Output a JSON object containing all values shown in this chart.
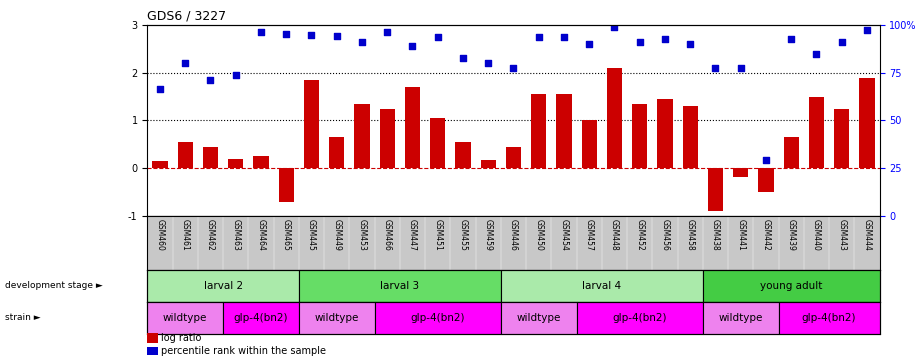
{
  "title": "GDS6 / 3227",
  "samples": [
    "GSM460",
    "GSM461",
    "GSM462",
    "GSM463",
    "GSM464",
    "GSM465",
    "GSM445",
    "GSM449",
    "GSM453",
    "GSM466",
    "GSM447",
    "GSM451",
    "GSM455",
    "GSM459",
    "GSM446",
    "GSM450",
    "GSM454",
    "GSM457",
    "GSM448",
    "GSM452",
    "GSM456",
    "GSM458",
    "GSM438",
    "GSM441",
    "GSM442",
    "GSM439",
    "GSM440",
    "GSM443",
    "GSM444"
  ],
  "log_ratio": [
    0.15,
    0.55,
    0.45,
    0.2,
    0.25,
    -0.7,
    1.85,
    0.65,
    1.35,
    1.25,
    1.7,
    1.05,
    0.55,
    0.18,
    0.45,
    1.55,
    1.55,
    1.0,
    2.1,
    1.35,
    1.45,
    1.3,
    -0.9,
    -0.18,
    -0.5,
    0.65,
    1.5,
    1.25,
    1.9
  ],
  "percentile_left": [
    1.65,
    2.2,
    1.85,
    1.95,
    2.85,
    2.82,
    2.78,
    2.76,
    2.65,
    2.85,
    2.55,
    2.75,
    2.3,
    2.2,
    2.1,
    2.75,
    2.75,
    2.6,
    2.95,
    2.65,
    2.7,
    2.6,
    2.1,
    2.1,
    0.18,
    2.7,
    2.4,
    2.65,
    2.9
  ],
  "dev_stage_groups": [
    {
      "label": "larval 2",
      "start": 0,
      "end": 6,
      "color": "#aaeaaa"
    },
    {
      "label": "larval 3",
      "start": 6,
      "end": 14,
      "color": "#66dd66"
    },
    {
      "label": "larval 4",
      "start": 14,
      "end": 22,
      "color": "#aaeaaa"
    },
    {
      "label": "young adult",
      "start": 22,
      "end": 29,
      "color": "#44cc44"
    }
  ],
  "strain_groups": [
    {
      "label": "wildtype",
      "start": 0,
      "end": 3,
      "color": "#ee82ee"
    },
    {
      "label": "glp-4(bn2)",
      "start": 3,
      "end": 6,
      "color": "#ff00ff"
    },
    {
      "label": "wildtype",
      "start": 6,
      "end": 9,
      "color": "#ee82ee"
    },
    {
      "label": "glp-4(bn2)",
      "start": 9,
      "end": 14,
      "color": "#ff00ff"
    },
    {
      "label": "wildtype",
      "start": 14,
      "end": 17,
      "color": "#ee82ee"
    },
    {
      "label": "glp-4(bn2)",
      "start": 17,
      "end": 22,
      "color": "#ff00ff"
    },
    {
      "label": "wildtype",
      "start": 22,
      "end": 25,
      "color": "#ee82ee"
    },
    {
      "label": "glp-4(bn2)",
      "start": 25,
      "end": 29,
      "color": "#ff00ff"
    }
  ],
  "ylim": [
    -1,
    3
  ],
  "yticks_left": [
    -1,
    0,
    1,
    2,
    3
  ],
  "bar_color": "#cc0000",
  "scatter_color": "#0000cc",
  "bar_width": 0.6,
  "hline0_color": "#cc0000",
  "hline0_style": "--",
  "hline1_color": "black",
  "hline1_style": ":",
  "hline2_color": "black",
  "hline2_style": ":",
  "tick_bg_color": "#c8c8c8",
  "dev_stage_border": "black",
  "strain_border": "black",
  "label_dev": "development stage ►",
  "label_strain": "strain ►",
  "legend_log": "log ratio",
  "legend_pct": "percentile rank within the sample"
}
